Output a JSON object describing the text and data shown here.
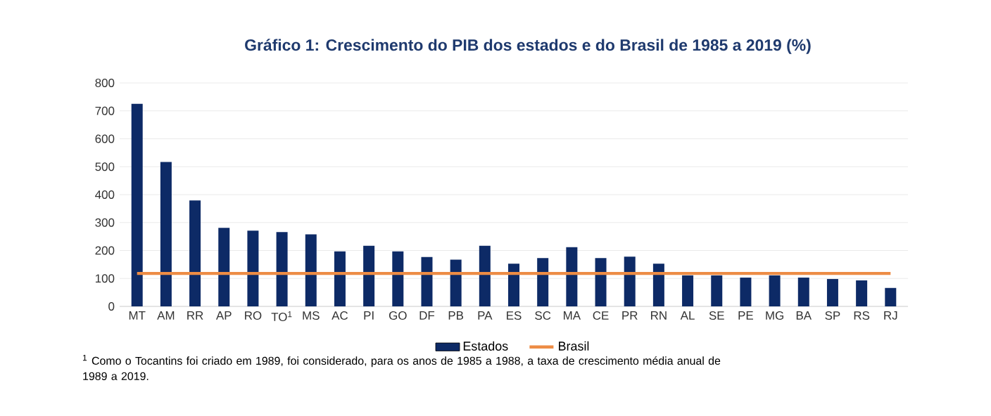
{
  "chart_data": {
    "type": "bar",
    "title": "Gráfico 1: Crescimento do PIB dos estados e do Brasil de 1985 a 2019 (%)",
    "categories": [
      "MT",
      "AM",
      "RR",
      "AP",
      "RO",
      "TO$^{1}$",
      "MS",
      "AC",
      "PI",
      "GO",
      "DF",
      "PB",
      "PA",
      "ES",
      "SC",
      "MA",
      "CE",
      "PR",
      "RN",
      "AL",
      "SE",
      "PE",
      "MG",
      "BA",
      "SP",
      "RS",
      "RJ"
    ],
    "series": [
      {
        "name": "Estados",
        "color": "#0d2a66",
        "values": [
          725,
          517,
          379,
          281,
          271,
          266,
          258,
          197,
          217,
          197,
          177,
          167,
          217,
          153,
          173,
          212,
          173,
          178,
          153,
          111,
          111,
          103,
          111,
          103,
          98,
          93,
          66
        ]
      },
      {
        "name": "Brasil",
        "type": "line",
        "color": "#ed8c45",
        "values": [
          118,
          118,
          118,
          118,
          118,
          118,
          118,
          118,
          118,
          118,
          118,
          118,
          118,
          118,
          118,
          118,
          118,
          118,
          118,
          118,
          118,
          118,
          118,
          118,
          118,
          118,
          118
        ]
      }
    ],
    "ylim": [
      0,
      800
    ],
    "yticks": [
      0,
      100,
      200,
      300,
      400,
      500,
      600,
      700,
      800
    ],
    "grid": "y",
    "legend": "bottom",
    "annotations": [
      "$^{1}$ Como o Tocantins foi criado em 1989, foi considerado, para os anos de 1985 a 1988, a taxa de crescimento média anual de 1989 a 2019."
    ]
  }
}
